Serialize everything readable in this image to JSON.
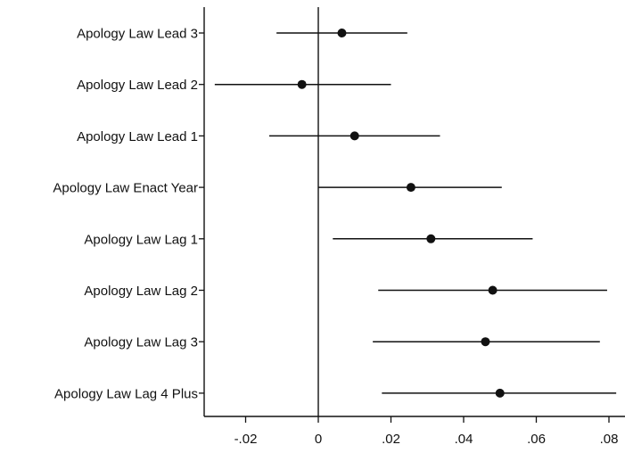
{
  "chart_data": {
    "type": "scatter",
    "orientation": "horizontal",
    "title": "",
    "xlabel": "",
    "ylabel": "",
    "xlim": [
      -0.032,
      0.085
    ],
    "grid": false,
    "legend": "none",
    "reference_line_x": 0,
    "x_ticks": [
      {
        "value": -0.02,
        "label": "-.02"
      },
      {
        "value": 0,
        "label": "0"
      },
      {
        "value": 0.02,
        "label": ".02"
      },
      {
        "value": 0.04,
        "label": ".04"
      },
      {
        "value": 0.06,
        "label": ".06"
      },
      {
        "value": 0.08,
        "label": ".08"
      }
    ],
    "points": [
      {
        "label": "Apology Law Lead 3",
        "estimate": 0.0065,
        "ci_low": -0.0115,
        "ci_high": 0.0245
      },
      {
        "label": "Apology Law Lead 2",
        "estimate": -0.0045,
        "ci_low": -0.0285,
        "ci_high": 0.02
      },
      {
        "label": "Apology Law Lead 1",
        "estimate": 0.01,
        "ci_low": -0.0135,
        "ci_high": 0.0335
      },
      {
        "label": "Apology Law Enact Year",
        "estimate": 0.0255,
        "ci_low": 0.0,
        "ci_high": 0.0505
      },
      {
        "label": "Apology Law Lag 1",
        "estimate": 0.031,
        "ci_low": 0.004,
        "ci_high": 0.059
      },
      {
        "label": "Apology Law Lag 2",
        "estimate": 0.048,
        "ci_low": 0.0165,
        "ci_high": 0.0795
      },
      {
        "label": "Apology Law Lag 3",
        "estimate": 0.046,
        "ci_low": 0.015,
        "ci_high": 0.0775
      },
      {
        "label": "Apology Law Lag 4 Plus",
        "estimate": 0.05,
        "ci_low": 0.0175,
        "ci_high": 0.082
      }
    ],
    "colors": {
      "marker": "#111111",
      "line": "#111111",
      "axis": "#111111"
    }
  }
}
